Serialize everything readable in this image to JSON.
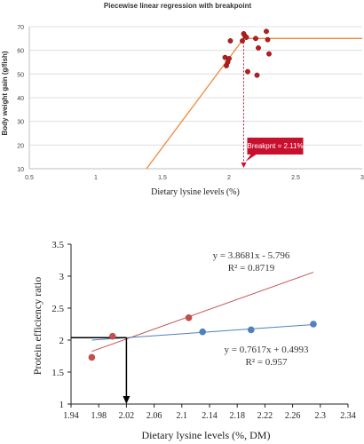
{
  "chart_data": [
    {
      "type": "scatter",
      "title": "Piecewise linear  regression with breakpoint",
      "xlabel": "Dietary lysine levels (%)",
      "ylabel": "Body weight gain (g/fish)",
      "xlim": [
        0.5,
        3
      ],
      "ylim": [
        10,
        70
      ],
      "xticks": [
        0.5,
        1,
        1.5,
        2,
        2.5,
        3
      ],
      "xtick_labels": [
        "0.5",
        "1",
        "1.5",
        "2",
        "2.5",
        "3"
      ],
      "yticks": [
        10,
        20,
        30,
        40,
        50,
        60,
        70
      ],
      "ytick_labels": [
        "10",
        "20",
        "30",
        "40",
        "50",
        "60",
        "70"
      ],
      "grid": true,
      "points": [
        [
          1.97,
          57.0
        ],
        [
          1.98,
          53.5
        ],
        [
          1.99,
          55.0
        ],
        [
          2.0,
          56.5
        ],
        [
          2.01,
          64.0
        ],
        [
          2.1,
          64.0
        ],
        [
          2.11,
          67.0
        ],
        [
          2.12,
          66.0
        ],
        [
          2.13,
          65.5
        ],
        [
          2.14,
          51.0
        ],
        [
          2.2,
          65.0
        ],
        [
          2.21,
          49.5
        ],
        [
          2.22,
          61.0
        ],
        [
          2.28,
          68.0
        ],
        [
          2.29,
          64.5
        ],
        [
          2.3,
          58.5
        ]
      ],
      "fit_segments": [
        [
          [
            1.38,
            10.0
          ],
          [
            2.11,
            65.0
          ]
        ],
        [
          [
            2.11,
            65.0
          ],
          [
            3.0,
            65.0
          ]
        ]
      ],
      "breakpoint": 2.11,
      "annotation": "Breakpnt = 2.11%",
      "colors": {
        "points": "#b51e1e",
        "fit": "#f0883a",
        "callout": "#c8102e",
        "grid": "#d9d9d9"
      }
    },
    {
      "type": "scatter",
      "xlabel": "Dietary lysine levels (%, DM)",
      "ylabel": "Protein efficiency ratio",
      "xlim": [
        1.94,
        2.34
      ],
      "ylim": [
        1,
        3.5
      ],
      "xticks": [
        1.94,
        1.98,
        2.02,
        2.06,
        2.1,
        2.14,
        2.18,
        2.22,
        2.26,
        2.3,
        2.34
      ],
      "xtick_labels": [
        "1.94",
        "1.98",
        "2.02",
        "2.06",
        "2.1",
        "2.14",
        "2.18",
        "2.22",
        "2.26",
        "2.3",
        "2.34"
      ],
      "yticks": [
        1,
        1.5,
        2,
        2.5,
        3,
        3.5
      ],
      "ytick_labels": [
        "1",
        "1.5",
        "2",
        "2.5",
        "3",
        "3.5"
      ],
      "grid": false,
      "series": [
        {
          "points": [
            [
              1.97,
              1.73
            ],
            [
              2.0,
              2.06
            ],
            [
              2.11,
              2.35
            ]
          ],
          "color": "#c0504d",
          "fit": {
            "slope": 3.8681,
            "intercept": -5.796,
            "x_range": [
              1.97,
              2.29
            ]
          },
          "equation": "y = 3.8681x - 5.796",
          "r2": "R² = 0.8719"
        },
        {
          "points": [
            [
              2.13,
              2.13
            ],
            [
              2.2,
              2.16
            ],
            [
              2.29,
              2.25
            ]
          ],
          "color": "#4f81bd",
          "fit": {
            "slope": 0.7617,
            "intercept": 0.4993,
            "x_range": [
              1.97,
              2.29
            ]
          },
          "equation": "y = 0.7617x + 0.4993",
          "r2": "R² = 0.957"
        }
      ],
      "intersection_x": 2.02
    }
  ]
}
